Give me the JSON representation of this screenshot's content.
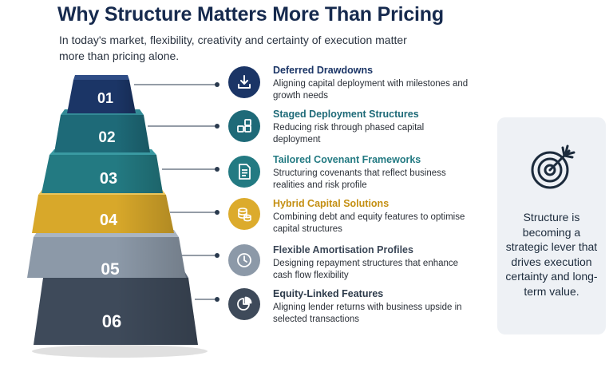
{
  "header": {
    "title": "Why Structure Matters More Than Pricing",
    "subtitle": "In today's market, flexibility, creativity and certainty of execution matter more than pricing alone."
  },
  "tiers": [
    {
      "number": "01",
      "color": "#1b3566",
      "title": "Deferred Drawdowns",
      "title_color": "#1b3566",
      "icon": "download-icon",
      "description": "Aligning capital deployment with milestones and growth needs"
    },
    {
      "number": "02",
      "color": "#1e6a78",
      "title": "Staged Deployment Structures",
      "title_color": "#1e6a78",
      "icon": "grid-blocks-icon",
      "description": "Reducing risk through phased capital deployment"
    },
    {
      "number": "03",
      "color": "#237a82",
      "title": "Tailored Covenant Frameworks",
      "title_color": "#237a82",
      "icon": "document-icon",
      "description": "Structuring covenants that reflect business realities and risk profile"
    },
    {
      "number": "04",
      "color": "#d8a82a",
      "title": "Hybrid Capital Solutions",
      "title_color": "#c48f12",
      "icon": "coins-icon",
      "description": "Combining debt and equity features to optimise capital structures"
    },
    {
      "number": "05",
      "color": "#8c99a8",
      "title": "Flexible Amortisation Profiles",
      "title_color": "#3a4656",
      "icon": "clock-icon",
      "description": "Designing repayment structures that enhance cash flow flexibility"
    },
    {
      "number": "06",
      "color": "#3e4a5a",
      "title": "Equity-Linked Features",
      "title_color": "#2c3a4a",
      "icon": "pie-chart-icon",
      "description": "Aligning lender returns with business upside in selected transactions"
    }
  ],
  "side_card": {
    "icon": "target-arrow-icon",
    "text": "Structure is becoming a strategic lever that drives execution certainty and long-term value."
  }
}
